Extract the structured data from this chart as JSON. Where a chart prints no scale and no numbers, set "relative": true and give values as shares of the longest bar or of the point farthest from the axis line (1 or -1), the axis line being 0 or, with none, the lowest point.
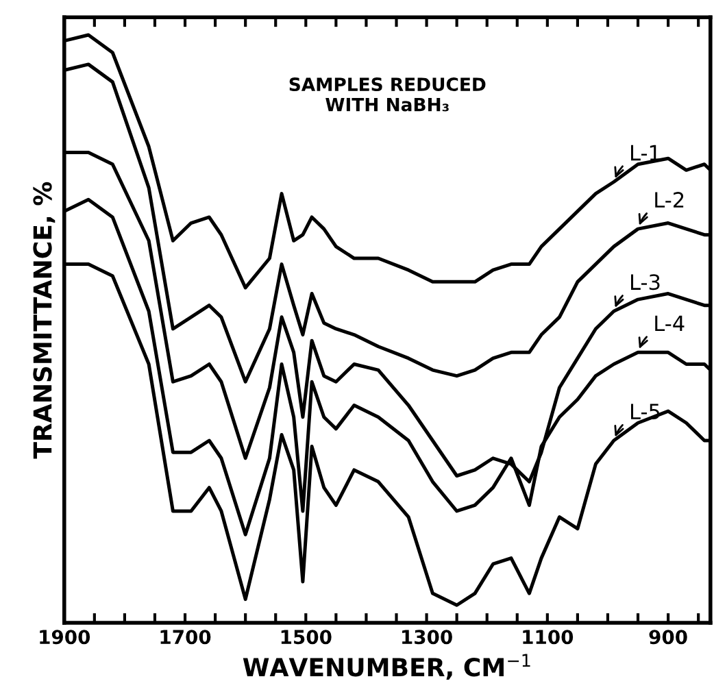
{
  "chart_data": {
    "type": "line",
    "relative": true,
    "xlabel": "WAVENUMBER, CM$^{−1}$",
    "ylabel": "TRANSMITTANCE, %",
    "x": [
      1900,
      1860,
      1820,
      1760,
      1720,
      1690,
      1660,
      1640,
      1600,
      1560,
      1540,
      1520,
      1505,
      1490,
      1470,
      1450,
      1420,
      1380,
      1330,
      1290,
      1250,
      1220,
      1190,
      1160,
      1130,
      1110,
      1080,
      1050,
      1020,
      990,
      950,
      900,
      870,
      840,
      830
    ],
    "xlim": [
      1900,
      830
    ],
    "xticks": [
      1900,
      {
        "value": 1850,
        "label": null
      },
      {
        "value": 1800,
        "label": null
      },
      {
        "value": 1750,
        "label": null
      },
      1700,
      {
        "value": 1650,
        "label": null
      },
      {
        "value": 1600,
        "label": null
      },
      {
        "value": 1550,
        "label": null
      },
      1500,
      {
        "value": 1450,
        "label": null
      },
      {
        "value": 1400,
        "label": null
      },
      {
        "value": 1350,
        "label": null
      },
      1300,
      {
        "value": 1250,
        "label": null
      },
      {
        "value": 1200,
        "label": null
      },
      {
        "value": 1150,
        "label": null
      },
      1100,
      {
        "value": 1050,
        "label": null
      },
      {
        "value": 1000,
        "label": null
      },
      {
        "value": 950,
        "label": null
      },
      900,
      {
        "value": 850,
        "label": null
      }
    ],
    "series": [
      {
        "name": "L-1",
        "color": "#000000",
        "values": [
          0.99,
          1.0,
          0.97,
          0.81,
          0.65,
          0.68,
          0.69,
          0.66,
          0.57,
          0.62,
          0.73,
          0.65,
          0.66,
          0.69,
          0.67,
          0.64,
          0.62,
          0.62,
          0.6,
          0.58,
          0.58,
          0.58,
          0.6,
          0.61,
          0.61,
          0.64,
          0.67,
          0.7,
          0.73,
          0.75,
          0.78,
          0.79,
          0.77,
          0.78,
          0.77
        ]
      },
      {
        "name": "L-2",
        "color": "#000000",
        "values": [
          0.94,
          0.95,
          0.92,
          0.74,
          0.5,
          0.52,
          0.54,
          0.52,
          0.41,
          0.5,
          0.61,
          0.54,
          0.49,
          0.56,
          0.51,
          0.5,
          0.49,
          0.47,
          0.45,
          0.43,
          0.42,
          0.43,
          0.45,
          0.46,
          0.46,
          0.49,
          0.52,
          0.58,
          0.61,
          0.64,
          0.67,
          0.68,
          0.67,
          0.66,
          0.66
        ]
      },
      {
        "name": "L-3",
        "color": "#000000",
        "values": [
          0.8,
          0.8,
          0.78,
          0.65,
          0.41,
          0.42,
          0.44,
          0.41,
          0.28,
          0.4,
          0.52,
          0.46,
          0.35,
          0.48,
          0.42,
          0.41,
          0.44,
          0.43,
          0.37,
          0.31,
          0.25,
          0.26,
          0.28,
          0.27,
          0.24,
          0.29,
          0.4,
          0.45,
          0.5,
          0.53,
          0.55,
          0.56,
          0.55,
          0.54,
          0.54
        ]
      },
      {
        "name": "L-4",
        "color": "#000000",
        "values": [
          0.7,
          0.72,
          0.69,
          0.53,
          0.29,
          0.29,
          0.31,
          0.28,
          0.15,
          0.28,
          0.44,
          0.35,
          0.19,
          0.41,
          0.35,
          0.33,
          0.37,
          0.35,
          0.31,
          0.24,
          0.19,
          0.2,
          0.23,
          0.28,
          0.2,
          0.3,
          0.35,
          0.38,
          0.42,
          0.44,
          0.46,
          0.46,
          0.44,
          0.44,
          0.43
        ]
      },
      {
        "name": "L-5",
        "color": "#000000",
        "values": [
          0.61,
          0.61,
          0.59,
          0.44,
          0.19,
          0.19,
          0.23,
          0.19,
          0.04,
          0.21,
          0.32,
          0.26,
          0.07,
          0.3,
          0.23,
          0.2,
          0.26,
          0.24,
          0.18,
          0.05,
          0.03,
          0.05,
          0.1,
          0.11,
          0.05,
          0.11,
          0.18,
          0.16,
          0.27,
          0.31,
          0.34,
          0.36,
          0.34,
          0.31,
          0.31
        ]
      }
    ],
    "annotations": [
      "SAMPLES REDUCED\nWITH NaBH₃"
    ],
    "grid": false,
    "legend": false,
    "line_style": "solid",
    "marker": "none"
  }
}
